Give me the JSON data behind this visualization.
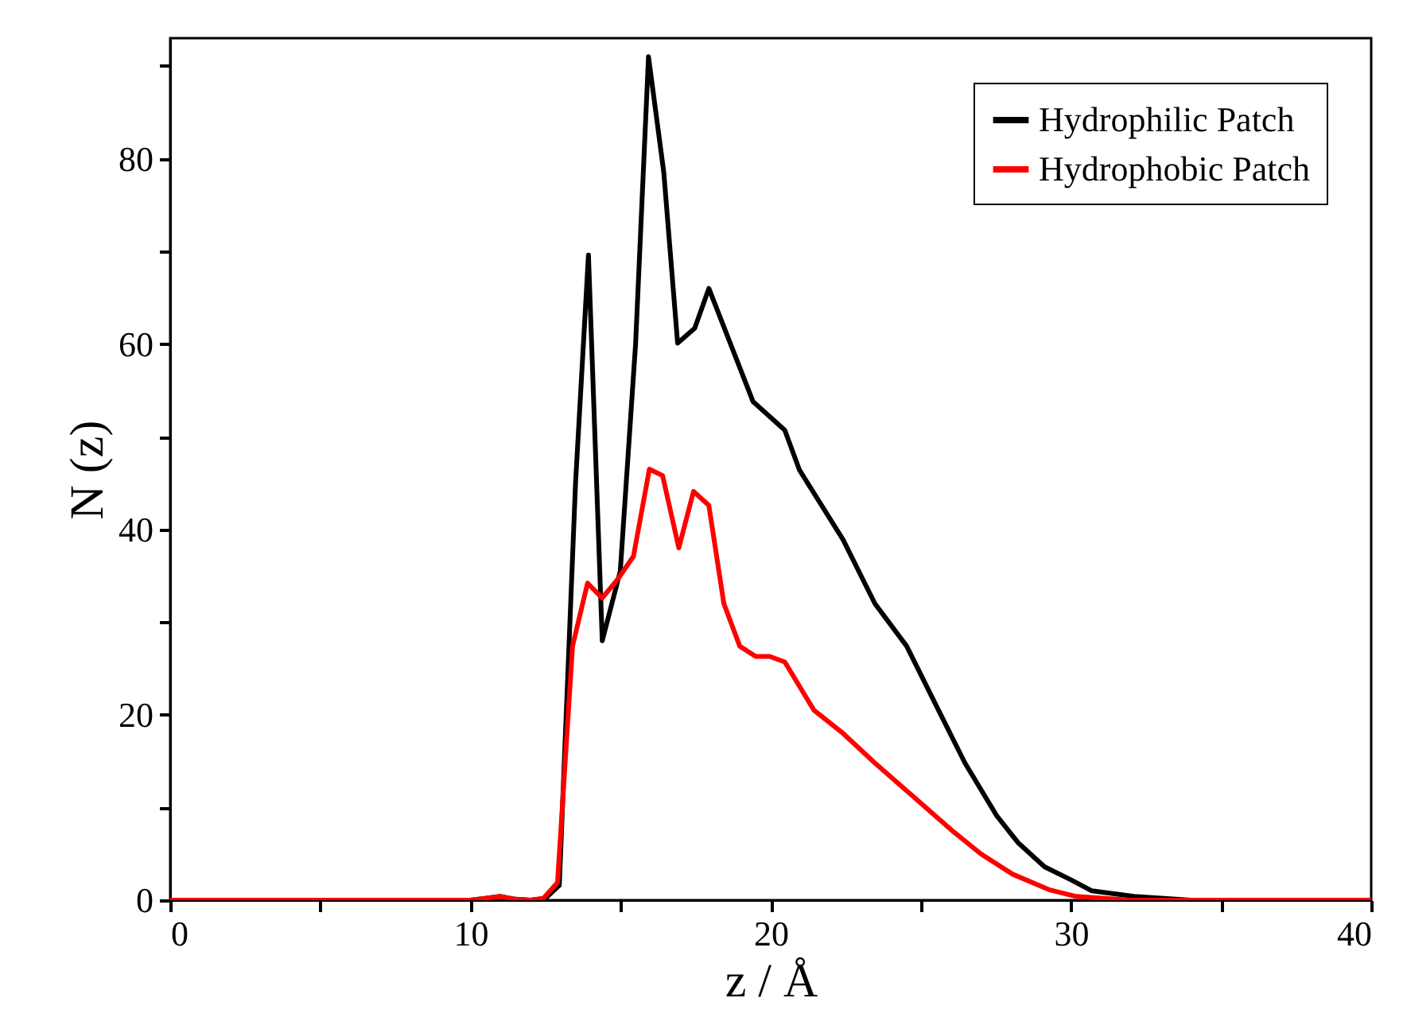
{
  "chart_data": {
    "type": "line",
    "xlabel": "z / Å",
    "ylabel": "N (z)",
    "xlim": [
      0,
      40
    ],
    "ylim": [
      0,
      93
    ],
    "xticks": [
      0,
      {
        "value": 5,
        "label": null
      },
      10,
      {
        "value": 15,
        "label": null
      },
      20,
      {
        "value": 25,
        "label": null
      },
      30,
      {
        "value": 35,
        "label": null
      },
      40
    ],
    "yticks": [
      0,
      {
        "value": 10,
        "label": null
      },
      20,
      {
        "value": 30,
        "label": null
      },
      40,
      {
        "value": 50,
        "label": null
      },
      60,
      {
        "value": 70,
        "label": null
      },
      80,
      {
        "value": 90,
        "label": null
      }
    ],
    "grid": false,
    "legend": "top right",
    "marker": "none",
    "line_style": "solid",
    "series": [
      {
        "name": "Hydrophilic Patch",
        "color": "#000000",
        "x": [
          0,
          10,
          10.5,
          11,
          11.5,
          12,
          12.5,
          12.96,
          13.5,
          13.93,
          14.39,
          14.99,
          15.5,
          15.93,
          16.44,
          16.9,
          17.47,
          17.94,
          19.41,
          20.47,
          20.96,
          22.41,
          23.47,
          24.53,
          25.59,
          26.47,
          27.53,
          28.24,
          29.12,
          30.0,
          30.7,
          32.1,
          34,
          40
        ],
        "values": [
          0,
          0,
          0.2,
          0.4,
          0.1,
          0,
          0.2,
          1.6,
          45,
          69.6,
          28,
          35.5,
          60,
          91,
          78.5,
          60.1,
          61.7,
          66,
          53.8,
          50.7,
          46.4,
          38.9,
          32,
          27.4,
          20.5,
          14.8,
          9.1,
          6.2,
          3.6,
          2.2,
          1.0,
          0.4,
          0,
          0
        ]
      },
      {
        "name": "Hydrophobic Patch",
        "color": "#ff0000",
        "x": [
          0,
          10,
          10.5,
          11,
          11.5,
          12,
          12.43,
          12.9,
          13.4,
          13.9,
          14.39,
          14.9,
          15.43,
          15.96,
          16.4,
          16.94,
          17.43,
          17.94,
          18.44,
          18.97,
          19.5,
          19.97,
          20.47,
          21.44,
          22.41,
          23.47,
          24.88,
          26.12,
          27.0,
          28.06,
          29.3,
          30.18,
          32,
          40
        ],
        "values": [
          0,
          0,
          0.2,
          0.4,
          0.1,
          0,
          0.2,
          1.9,
          27.4,
          34.2,
          32.6,
          34.6,
          37.1,
          46.5,
          45.8,
          38,
          44.1,
          42.6,
          32,
          27.4,
          26.3,
          26.3,
          25.7,
          20.5,
          18,
          14.8,
          10.8,
          7.3,
          5,
          2.8,
          1.1,
          0.4,
          0,
          0
        ]
      }
    ]
  }
}
